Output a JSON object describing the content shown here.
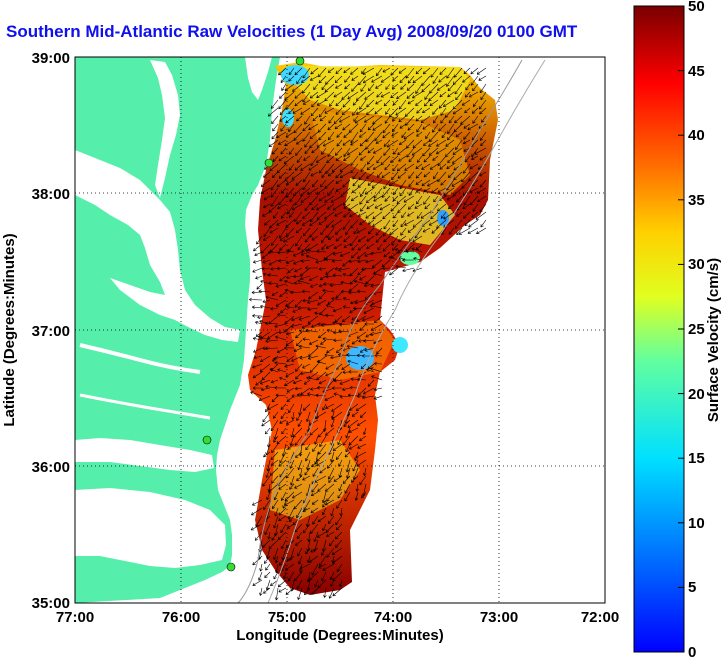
{
  "title": "Southern Mid-Atlantic Raw Velocities (1 Day Avg) 2008/09/20 0100 GMT",
  "map": {
    "x_label": "Longitude (Degrees:Minutes)",
    "y_label": "Latitude (Degrees:Minutes)",
    "lon_ticks": [
      "77:00",
      "76:00",
      "75:00",
      "74:00",
      "73:00",
      "72:00"
    ],
    "lat_ticks": [
      "39:00",
      "38:00",
      "37:00",
      "36:00",
      "35:00"
    ],
    "lon_range": [
      -77,
      -72
    ],
    "lat_range": [
      35,
      39
    ],
    "grid": "dotted",
    "land_color": "#55eeaa",
    "water_color": "#ffffff",
    "station_color": "#33dd33"
  },
  "colorbar": {
    "label": "Surface Velocity (cm/s)",
    "ticks": [
      "0",
      "5",
      "10",
      "15",
      "20",
      "25",
      "30",
      "35",
      "40",
      "45",
      "50"
    ],
    "range": [
      0,
      50
    ],
    "colormap": "jet"
  }
}
